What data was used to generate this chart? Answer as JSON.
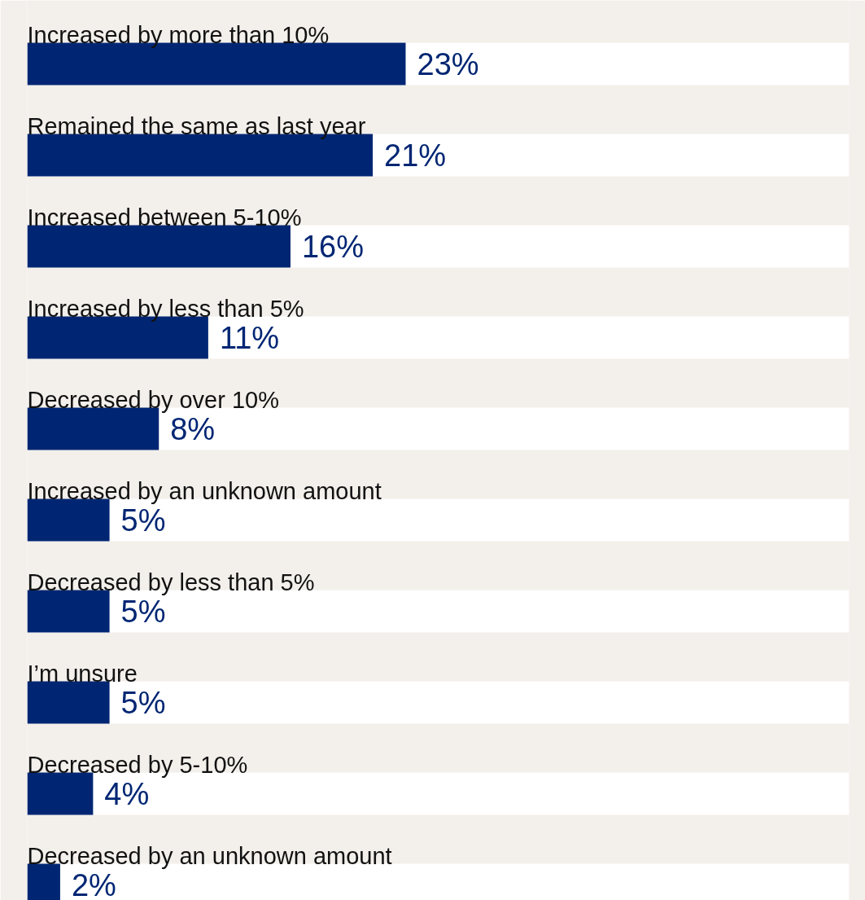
{
  "chart_data": {
    "type": "bar",
    "orientation": "horizontal",
    "categories": [
      "Increased by more than 10%",
      "Remained the same as last year",
      "Increased between 5-10%",
      "Increased by less than 5%",
      "Decreased by over 10%",
      "Increased by an unknown amount",
      "Decreased by less than 5%",
      "I’m unsure",
      "Decreased by 5-10%",
      "Decreased by an unknown amount"
    ],
    "values": [
      23,
      21,
      16,
      11,
      8,
      5,
      5,
      5,
      4,
      2
    ],
    "value_labels": [
      "23%",
      "21%",
      "16%",
      "11%",
      "8%",
      "5%",
      "5%",
      "5%",
      "4%",
      "2%"
    ],
    "color": "#002673"
  }
}
